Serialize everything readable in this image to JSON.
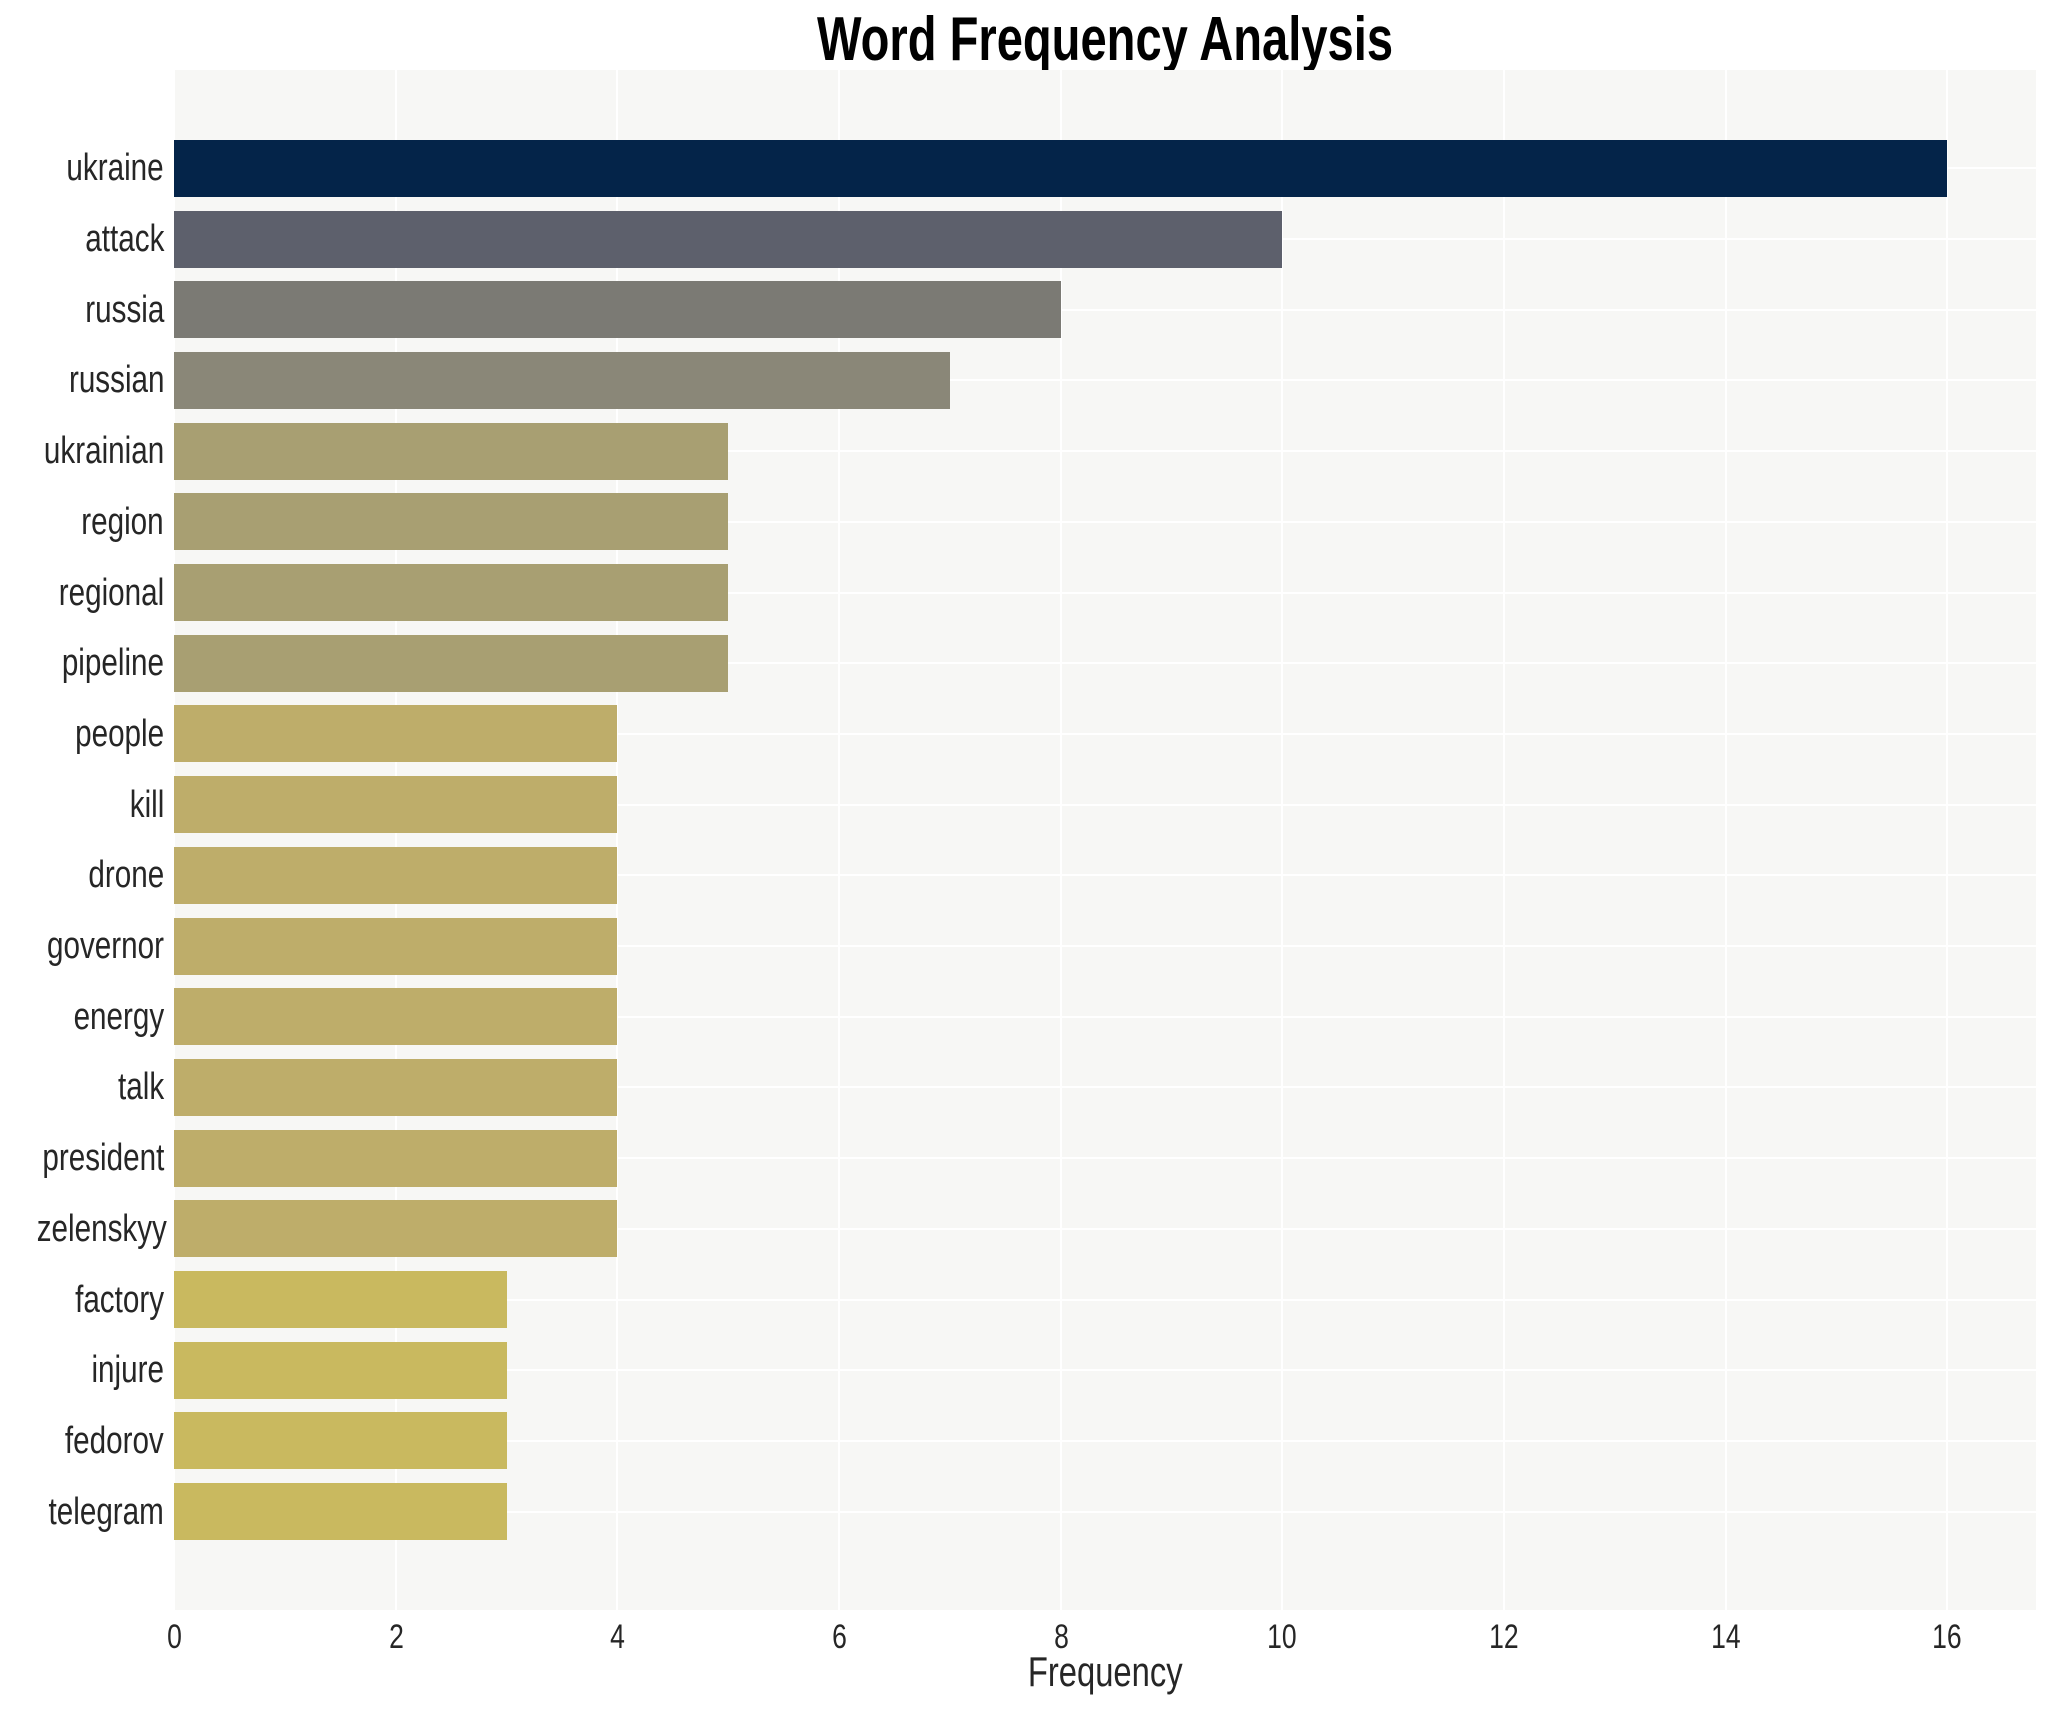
{
  "chart_data": {
    "type": "bar",
    "orientation": "horizontal",
    "title": "Word Frequency Analysis",
    "xlabel": "Frequency",
    "ylabel": "",
    "categories": [
      "ukraine",
      "attack",
      "russia",
      "russian",
      "ukrainian",
      "region",
      "regional",
      "pipeline",
      "people",
      "kill",
      "drone",
      "governor",
      "energy",
      "talk",
      "president",
      "zelenskyy",
      "factory",
      "injure",
      "fedorov",
      "telegram"
    ],
    "values": [
      16,
      10,
      8,
      7,
      5,
      5,
      5,
      5,
      4,
      4,
      4,
      4,
      4,
      4,
      4,
      4,
      3,
      3,
      3,
      3
    ],
    "bar_colors": [
      "#042449",
      "#5d606c",
      "#7b7a74",
      "#8a8778",
      "#a89f72",
      "#a89f72",
      "#a89f72",
      "#a89f72",
      "#bead6a",
      "#bead6a",
      "#bead6a",
      "#bead6a",
      "#bead6a",
      "#bead6a",
      "#bead6a",
      "#bead6a",
      "#c9b95f",
      "#c9b95f",
      "#c9b95f",
      "#c9b95f"
    ],
    "xlim": [
      0,
      16.8
    ],
    "xticks": [
      0,
      2,
      4,
      6,
      8,
      10,
      12,
      14,
      16
    ],
    "grid": true,
    "legend": null,
    "colors": {
      "plot_background": "#f7f7f5",
      "gridline": "#ffffff",
      "tick_text": "#262626",
      "title_text": "#000000"
    }
  }
}
